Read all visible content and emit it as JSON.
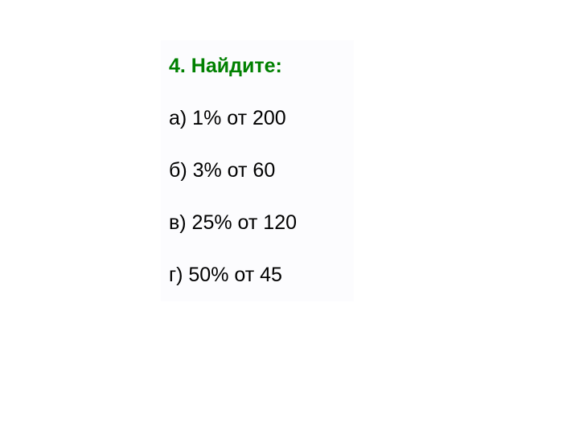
{
  "title": {
    "text": "4. Найдите:",
    "color": "#008000"
  },
  "items": [
    {
      "text": "а) 1% от 200"
    },
    {
      "text": "б) 3% от 60"
    },
    {
      "text": "в) 25% от 120"
    },
    {
      "text": "г) 50% от 45"
    }
  ],
  "styling": {
    "background_color": "#ffffff",
    "box_background": "#fcfcfe",
    "text_color": "#000000",
    "title_fontsize": 25,
    "item_fontsize": 25,
    "font_family": "Arial"
  }
}
